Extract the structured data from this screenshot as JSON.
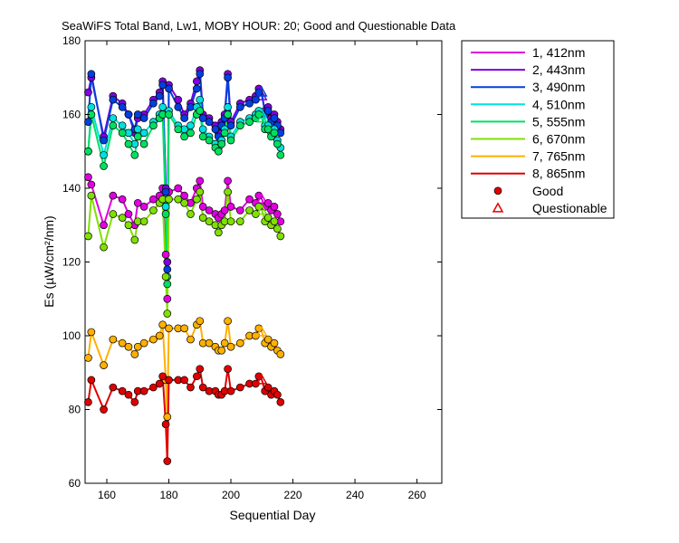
{
  "chart_data": {
    "type": "line",
    "title": "SeaWiFS Total Band,  Lw1, MOBY HOUR: 20;  Good and Questionable Data",
    "xlabel": "Sequential Day",
    "ylabel": "Es (µW/cm²/nm)",
    "xlim": [
      153,
      268
    ],
    "ylim": [
      60,
      180
    ],
    "xticks": [
      160,
      180,
      200,
      220,
      240,
      260
    ],
    "yticks": [
      60,
      80,
      100,
      120,
      140,
      160,
      180
    ],
    "grid": false,
    "legend_position": "outside-right",
    "x": [
      154,
      155,
      159,
      162,
      165,
      167,
      169,
      170,
      172,
      175,
      177,
      178,
      179,
      179.5,
      180,
      183,
      185,
      187,
      189,
      190,
      191,
      193,
      195,
      196,
      197,
      198,
      199,
      200,
      203,
      206,
      208,
      209,
      210,
      211,
      212,
      213,
      214,
      215,
      216
    ],
    "series": [
      {
        "name": "1, 412nm",
        "color": "#e000e0",
        "values": [
          143,
          141,
          130,
          138,
          137,
          133,
          130,
          136,
          135,
          137,
          138,
          140,
          122,
          110,
          139,
          140,
          138,
          136,
          140,
          142,
          135,
          134,
          133,
          132,
          133,
          134,
          142,
          135,
          134,
          137,
          136,
          138,
          137,
          135,
          136,
          134,
          135,
          133,
          131
        ]
      },
      {
        "name": "2, 443nm",
        "color": "#8000e0",
        "values": [
          166,
          170,
          154,
          165,
          163,
          160,
          155,
          159,
          160,
          164,
          166,
          169,
          140,
          120,
          168,
          164,
          160,
          163,
          169,
          172,
          160,
          159,
          157,
          155,
          158,
          160,
          171,
          158,
          163,
          164,
          165,
          167,
          165,
          161,
          162,
          159,
          160,
          158,
          156
        ]
      },
      {
        "name": "3, 490nm",
        "color": "#0040e0",
        "values": [
          158,
          171,
          153,
          164,
          162,
          160,
          156,
          160,
          159,
          163,
          165,
          168,
          139,
          118,
          167,
          162,
          159,
          162,
          167,
          171,
          159,
          158,
          156,
          154,
          157,
          159,
          170,
          157,
          162,
          163,
          164,
          166,
          166,
          160,
          161,
          158,
          159,
          157,
          155
        ]
      },
      {
        "name": "4, 510nm",
        "color": "#00e0e0",
        "values": [
          150,
          162,
          149,
          159,
          157,
          155,
          152,
          156,
          155,
          158,
          160,
          162,
          135,
          116,
          161,
          157,
          156,
          157,
          162,
          164,
          156,
          154,
          152,
          151,
          153,
          156,
          162,
          154,
          158,
          159,
          160,
          161,
          160,
          157,
          157,
          155,
          156,
          153,
          151
        ]
      },
      {
        "name": "5, 555nm",
        "color": "#00e060",
        "values": [
          150,
          160,
          146,
          157,
          155,
          152,
          149,
          154,
          152,
          157,
          159,
          160,
          133,
          114,
          160,
          156,
          154,
          155,
          160,
          161,
          154,
          153,
          151,
          150,
          152,
          155,
          160,
          153,
          157,
          158,
          159,
          160,
          159,
          156,
          156,
          154,
          155,
          152,
          149
        ]
      },
      {
        "name": "6, 670nm",
        "color": "#80e000",
        "values": [
          127,
          138,
          124,
          133,
          132,
          130,
          126,
          131,
          131,
          134,
          136,
          137,
          116,
          106,
          137,
          137,
          136,
          133,
          137,
          139,
          132,
          131,
          130,
          128,
          130,
          131,
          139,
          131,
          131,
          134,
          133,
          135,
          134,
          131,
          132,
          130,
          131,
          129,
          127
        ]
      },
      {
        "name": "7, 765nm",
        "color": "#ffb000",
        "values": [
          94,
          101,
          92,
          99,
          98,
          97,
          95,
          97,
          98,
          99,
          100,
          103,
          88,
          78,
          102,
          102,
          102,
          99,
          103,
          104,
          98,
          98,
          97,
          96,
          96,
          98,
          104,
          97,
          98,
          100,
          100,
          102,
          101,
          98,
          99,
          97,
          98,
          96,
          95
        ]
      },
      {
        "name": "8, 865nm",
        "color": "#e00000",
        "values": [
          82,
          88,
          80,
          86,
          85,
          84,
          82,
          85,
          85,
          86,
          87,
          89,
          76,
          66,
          88,
          88,
          88,
          86,
          89,
          91,
          86,
          85,
          85,
          84,
          84,
          85,
          91,
          85,
          86,
          87,
          87,
          89,
          88,
          85,
          86,
          84,
          85,
          84,
          82
        ]
      }
    ],
    "questionable_x": [
      188,
      210
    ]
  },
  "legend": {
    "entries": [
      {
        "label": "1, 412nm",
        "color": "#e000e0",
        "kind": "line"
      },
      {
        "label": "2, 443nm",
        "color": "#8000e0",
        "kind": "line"
      },
      {
        "label": "3, 490nm",
        "color": "#0040e0",
        "kind": "line"
      },
      {
        "label": "4, 510nm",
        "color": "#00e0e0",
        "kind": "line"
      },
      {
        "label": "5, 555nm",
        "color": "#00e060",
        "kind": "line"
      },
      {
        "label": "6, 670nm",
        "color": "#80e000",
        "kind": "line"
      },
      {
        "label": "7, 765nm",
        "color": "#ffb000",
        "kind": "line"
      },
      {
        "label": "8, 865nm",
        "color": "#e00000",
        "kind": "line"
      },
      {
        "label": "Good",
        "color": "#e00000",
        "kind": "dot"
      },
      {
        "label": "Questionable",
        "color": "#e00000",
        "kind": "triangle"
      }
    ]
  }
}
